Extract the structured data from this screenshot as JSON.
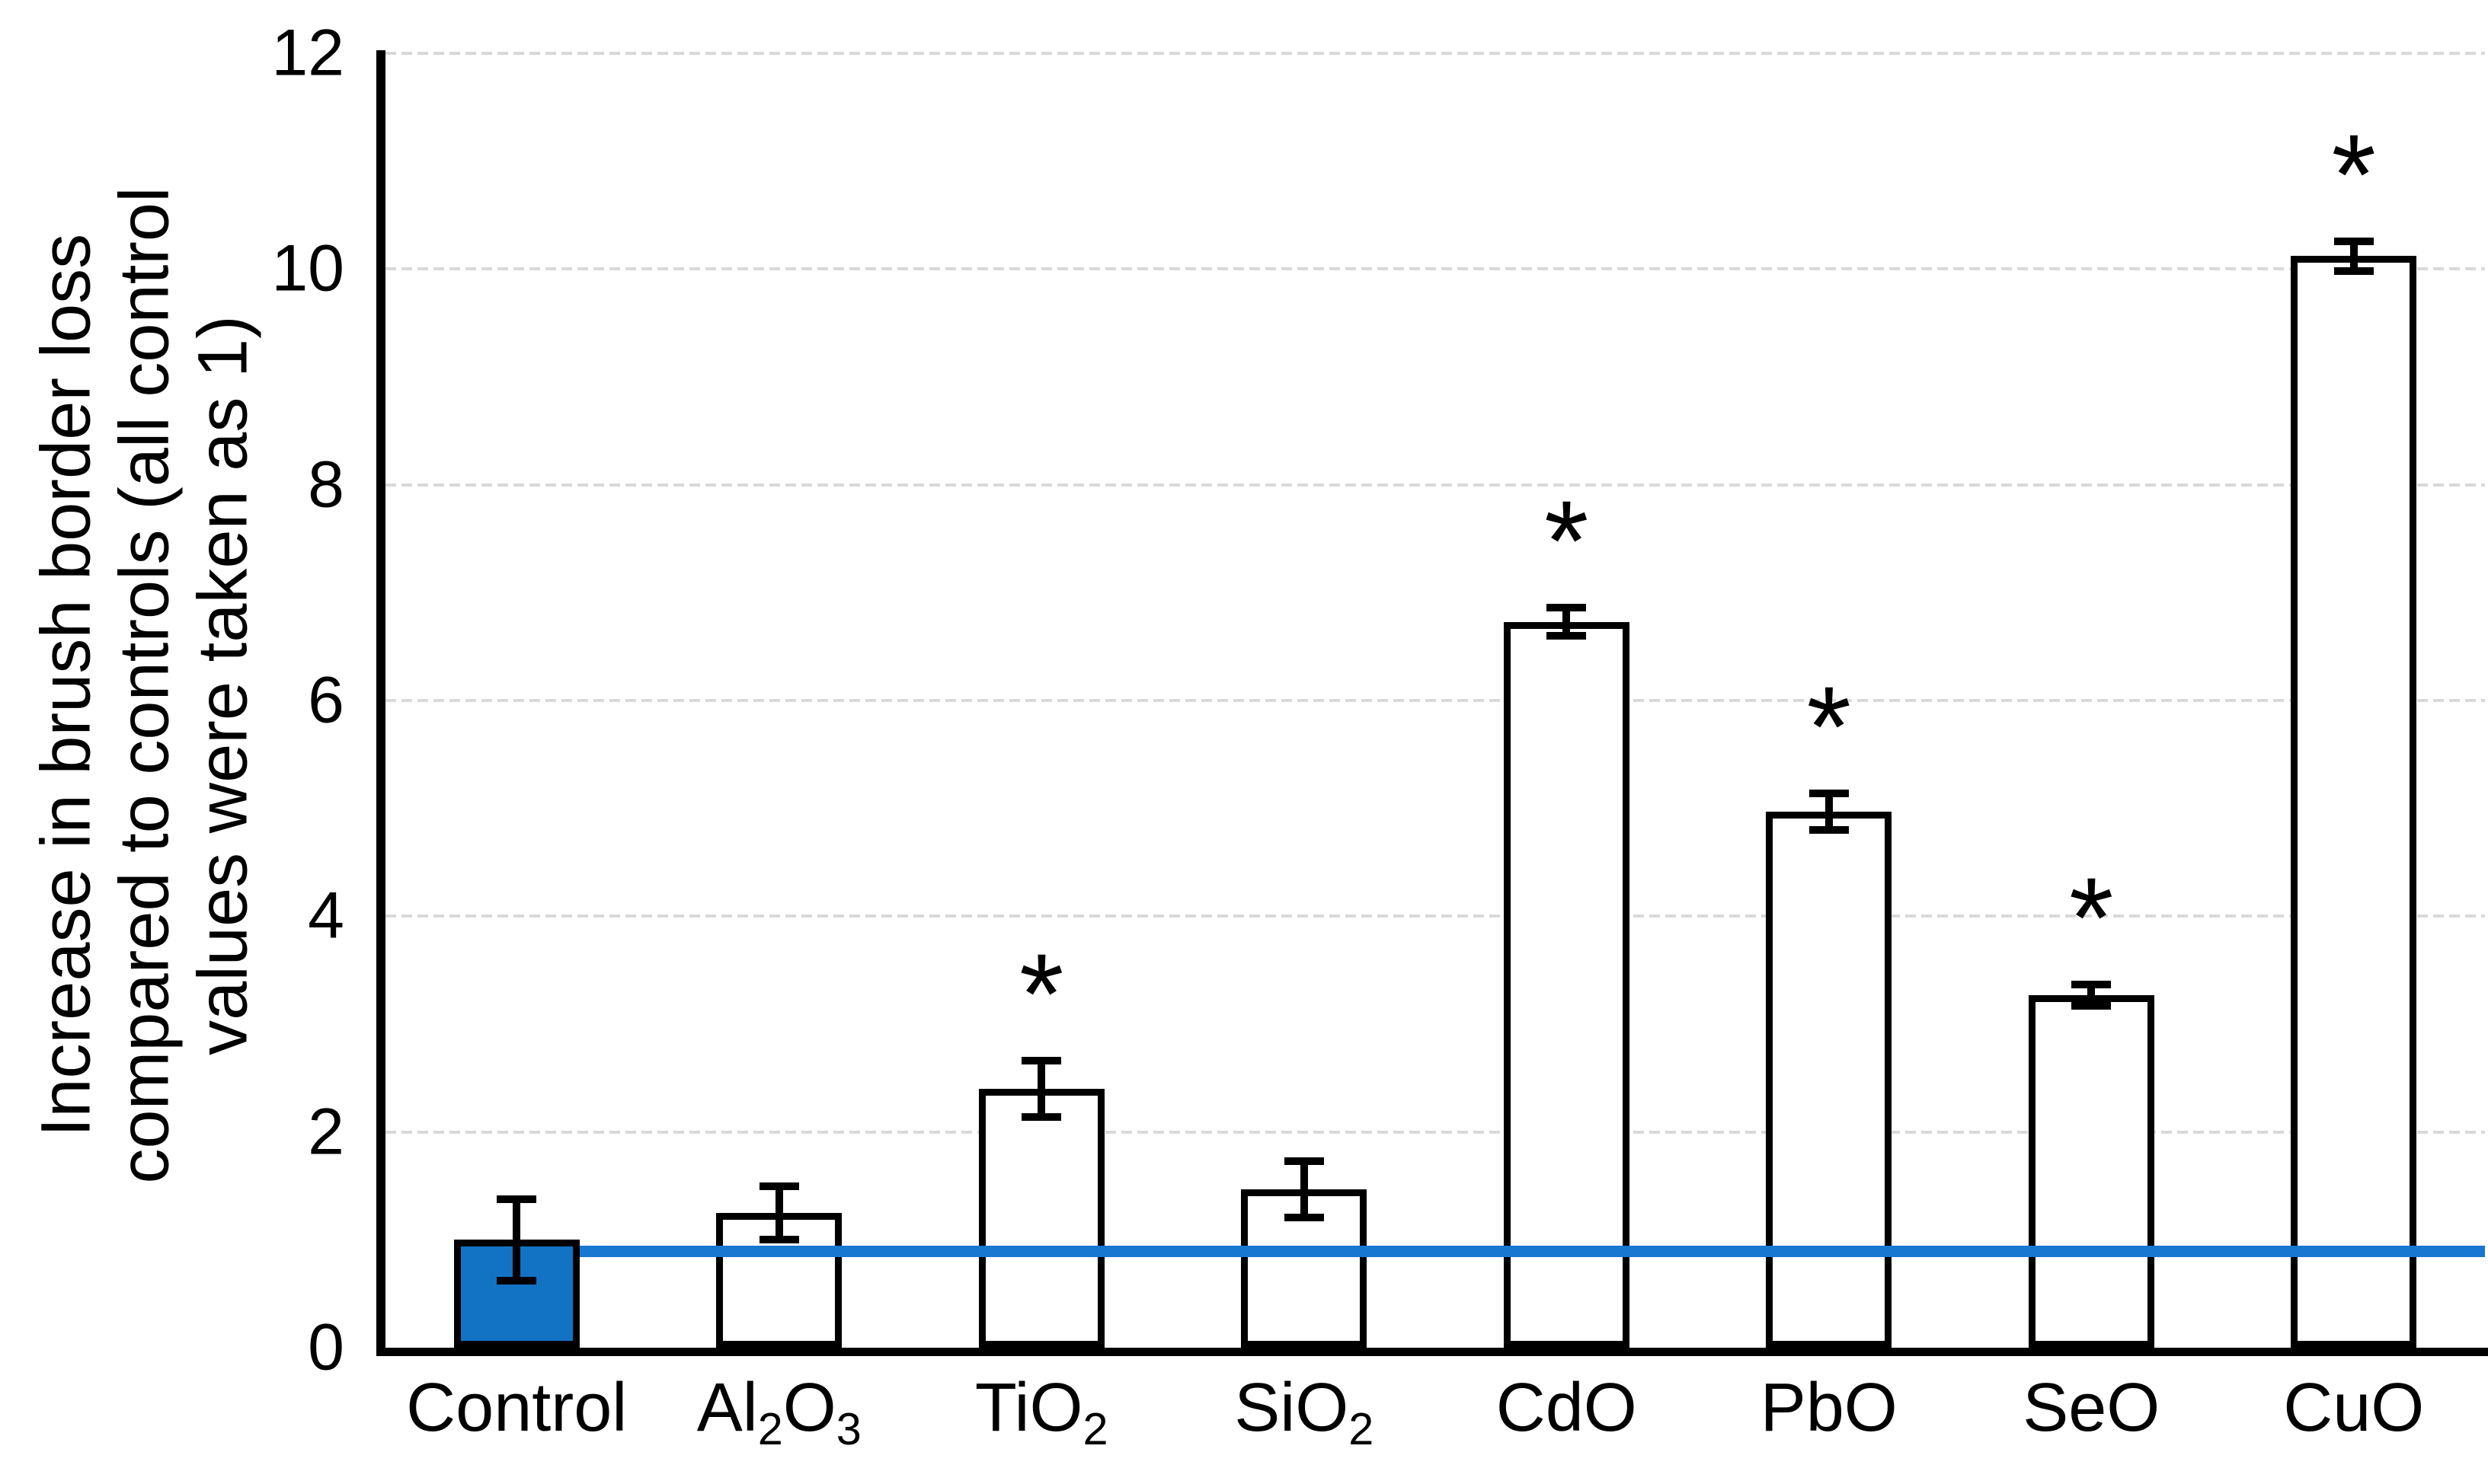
{
  "figure": {
    "background_color": "#ffffff",
    "axis_color": "#000000",
    "grid_color": "#d9d9d9",
    "significance_marker": "*"
  },
  "chart_data": {
    "type": "bar",
    "title": "",
    "xlabel": "",
    "ylabel_lines": [
      "Increase in brush border loss",
      "compared to controls (all control",
      "values were taken as 1)"
    ],
    "ylim": [
      0,
      12
    ],
    "yticks": [
      0,
      2,
      4,
      6,
      8,
      10,
      12
    ],
    "grid": "horizontal light-gray dashed lines at ticks 2,4,6,8,10,12",
    "legend_position": "none",
    "categories": [
      "Control",
      "Al2O3",
      "TiO2",
      "SiO2",
      "CdO",
      "PbO",
      "SeO",
      "CuO"
    ],
    "category_label_parts": [
      [
        {
          "t": "Control"
        }
      ],
      [
        {
          "t": "Al"
        },
        {
          "t": "2",
          "sub": true
        },
        {
          "t": "O"
        },
        {
          "t": "3",
          "sub": true
        }
      ],
      [
        {
          "t": "TiO"
        },
        {
          "t": "2",
          "sub": true
        }
      ],
      [
        {
          "t": "SiO"
        },
        {
          "t": "2",
          "sub": true
        }
      ],
      [
        {
          "t": "CdO"
        }
      ],
      [
        {
          "t": "PbO"
        }
      ],
      [
        {
          "t": "SeO"
        }
      ],
      [
        {
          "t": "CuO"
        }
      ]
    ],
    "values": [
      1.0,
      1.25,
      2.4,
      1.47,
      6.73,
      4.97,
      3.27,
      10.12
    ],
    "errors": [
      0.38,
      0.25,
      0.26,
      0.26,
      0.13,
      0.17,
      0.1,
      0.14
    ],
    "significant": [
      false,
      false,
      true,
      false,
      true,
      true,
      true,
      true
    ],
    "bar_border_color": "#000000",
    "bar_fill_color": "#ffffff",
    "control_bar_fill_color": "#1273c4",
    "reference_line": {
      "value": 0.9,
      "color": "#1877d1",
      "starts_after_category": "Control",
      "meaning": "control level"
    }
  }
}
